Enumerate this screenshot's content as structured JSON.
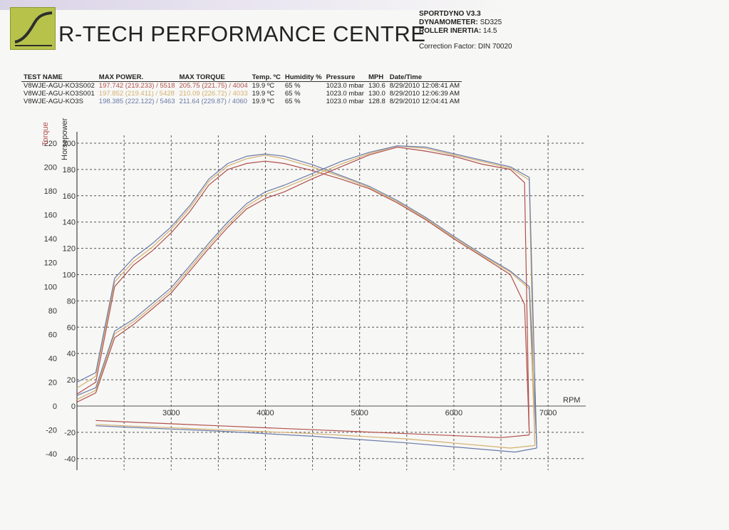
{
  "header": {
    "company": "R-TECH PERFORMANCE CENTRE",
    "software_label": "SPORTDYNO V3.3",
    "dyno_label": "DYNAMOMETER:",
    "dyno_value": "SD325",
    "inertia_label": "ROLLER INERTIA:",
    "inertia_value": "14.5",
    "correction_label": "Correction Factor:",
    "correction_value": "DIN 70020",
    "accent_color": "#b6c24a"
  },
  "runs_table": {
    "headers": [
      "TEST NAME",
      "MAX POWER.",
      "MAX TORQUE",
      "Temp. ºC",
      "Humidity %",
      "Pressure",
      "MPH",
      "Date/Time"
    ],
    "rows": [
      {
        "name": "V8WJE-AGU-KO3S002",
        "power": "197.742 (219.233) / 5518",
        "torque": "205.75 (221.75) / 4004",
        "temp": "19.9 ºC",
        "humidity": "65 %",
        "pressure": "1023.0 mbar",
        "mph": "130.6",
        "datetime": "8/29/2010 12:08:41 AM",
        "color": "#b0504c"
      },
      {
        "name": "V8WJE-AGU-KO3S001",
        "power": "197.852 (219.411) / 5428",
        "torque": "210.09 (226.72) / 4033",
        "temp": "19.9 ºC",
        "humidity": "65 %",
        "pressure": "1023.0 mbar",
        "mph": "130.0",
        "datetime": "8/29/2010 12:06:39 AM",
        "color": "#d4b070"
      },
      {
        "name": "V8WJE-AGU-KO3S",
        "power": "198.385 (222.122) / 5463",
        "torque": "211.64 (229.87) / 4060",
        "temp": "19.9 ºC",
        "humidity": "65 %",
        "pressure": "1023.0 mbar",
        "mph": "128.8",
        "datetime": "8/29/2010 12:04:41 AM",
        "color": "#6a7aa8"
      }
    ]
  },
  "chart_data": {
    "type": "line",
    "xlabel": "RPM",
    "ylabel_left": "Torque",
    "ylabel_right": "Horsepower",
    "xlim": [
      2000,
      7400
    ],
    "x_ticks": [
      3000,
      4000,
      5000,
      6000,
      7000
    ],
    "torque_ylim": [
      -40,
      220
    ],
    "torque_ticks": [
      -40,
      -20,
      0,
      20,
      40,
      60,
      80,
      100,
      120,
      140,
      160,
      180,
      200,
      220
    ],
    "hp_ylim": [
      -40,
      200
    ],
    "hp_ticks": [
      -40,
      -20,
      0,
      20,
      40,
      60,
      80,
      100,
      120,
      140,
      160,
      180,
      200
    ],
    "grid": true,
    "series": [
      {
        "quantity": "torque",
        "run": "V8WJE-AGU-KO3S002",
        "color": "#b0504c",
        "x": [
          2000,
          2200,
          2400,
          2600,
          2800,
          3000,
          3200,
          3400,
          3600,
          3800,
          4000,
          4200,
          4500,
          4800,
          5100,
          5400,
          5700,
          6000,
          6300,
          6600,
          6750,
          6800
        ],
        "y": [
          10,
          20,
          100,
          118,
          130,
          145,
          163,
          185,
          198,
          203,
          205,
          203,
          197,
          190,
          182,
          170,
          156,
          140,
          125,
          110,
          85,
          -22
        ]
      },
      {
        "quantity": "torque",
        "run": "V8WJE-AGU-KO3S001",
        "color": "#d4b070",
        "x": [
          2000,
          2200,
          2400,
          2600,
          2800,
          3000,
          3200,
          3400,
          3600,
          3800,
          4000,
          4200,
          4500,
          4800,
          5100,
          5400,
          5700,
          6000,
          6300,
          6600,
          6800,
          6860
        ],
        "y": [
          15,
          25,
          104,
          121,
          133,
          148,
          166,
          188,
          201,
          207,
          210,
          207,
          200,
          192,
          183,
          171,
          157,
          141,
          126,
          112,
          98,
          -30
        ]
      },
      {
        "quantity": "torque",
        "run": "V8WJE-AGU-KO3S",
        "color": "#6a7aa8",
        "x": [
          2000,
          2200,
          2400,
          2600,
          2800,
          3000,
          3200,
          3400,
          3600,
          3800,
          4000,
          4200,
          4500,
          4800,
          5100,
          5400,
          5700,
          6000,
          6300,
          6600,
          6800,
          6880
        ],
        "y": [
          20,
          28,
          107,
          124,
          136,
          150,
          168,
          190,
          203,
          209,
          211,
          209,
          202,
          193,
          184,
          172,
          158,
          142,
          127,
          113,
          100,
          -32
        ]
      },
      {
        "quantity": "horsepower",
        "run": "V8WJE-AGU-KO3S002",
        "color": "#b0504c",
        "x": [
          2000,
          2200,
          2400,
          2600,
          2800,
          3000,
          3200,
          3400,
          3600,
          3800,
          4000,
          4200,
          4500,
          4800,
          5100,
          5400,
          5700,
          6000,
          6300,
          6600,
          6750,
          6800
        ],
        "y": [
          3,
          10,
          52,
          62,
          74,
          86,
          103,
          120,
          136,
          150,
          158,
          163,
          173,
          182,
          191,
          197,
          194,
          190,
          184,
          180,
          170,
          -22
        ]
      },
      {
        "quantity": "horsepower",
        "run": "V8WJE-AGU-KO3S001",
        "color": "#d4b070",
        "x": [
          2000,
          2200,
          2400,
          2600,
          2800,
          3000,
          3200,
          3400,
          3600,
          3800,
          4000,
          4200,
          4500,
          4800,
          5100,
          5400,
          5700,
          6000,
          6300,
          6600,
          6800,
          6860
        ],
        "y": [
          5,
          12,
          55,
          64,
          76,
          88,
          105,
          122,
          138,
          152,
          161,
          166,
          175,
          184,
          192,
          198,
          196,
          191,
          186,
          181,
          172,
          -30
        ]
      },
      {
        "quantity": "horsepower",
        "run": "V8WJE-AGU-KO3S",
        "color": "#6a7aa8",
        "x": [
          2000,
          2200,
          2400,
          2600,
          2800,
          3000,
          3200,
          3400,
          3600,
          3800,
          4000,
          4200,
          4500,
          4800,
          5100,
          5400,
          5700,
          6000,
          6300,
          6600,
          6800,
          6880
        ],
        "y": [
          8,
          14,
          57,
          66,
          78,
          90,
          107,
          124,
          140,
          154,
          163,
          168,
          177,
          186,
          193,
          198,
          197,
          192,
          187,
          182,
          174,
          -32
        ]
      },
      {
        "quantity": "coastdown",
        "run": "V8WJE-AGU-KO3S002",
        "color": "#b0504c",
        "x": [
          6800,
          6500,
          5500,
          4500,
          3500,
          2500,
          2200
        ],
        "y": [
          -22,
          -24,
          -21,
          -18,
          -15,
          -12,
          -11
        ]
      },
      {
        "quantity": "coastdown",
        "run": "V8WJE-AGU-KO3S001",
        "color": "#d4b070",
        "x": [
          6860,
          6600,
          5500,
          4500,
          3500,
          2500,
          2200
        ],
        "y": [
          -30,
          -32,
          -25,
          -21,
          -18,
          -15,
          -14
        ]
      },
      {
        "quantity": "coastdown",
        "run": "V8WJE-AGU-KO3S",
        "color": "#6a7aa8",
        "x": [
          6880,
          6650,
          5500,
          4500,
          3500,
          2500,
          2200
        ],
        "y": [
          -32,
          -35,
          -28,
          -23,
          -19,
          -16,
          -15
        ]
      }
    ]
  }
}
